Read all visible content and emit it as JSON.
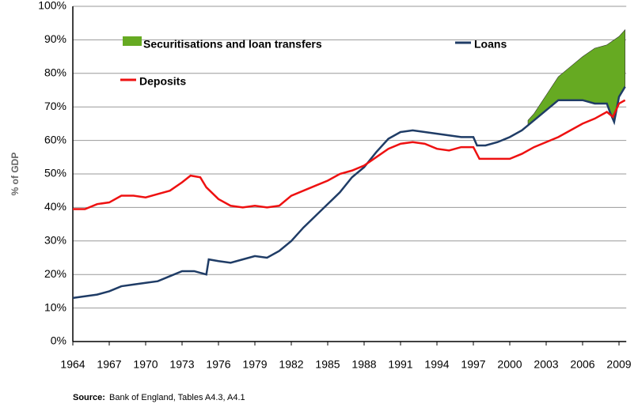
{
  "chart_data": {
    "type": "line",
    "ylabel": "% of GDP",
    "source_label": "Source:",
    "source": "Bank of England, Tables A4.3, A4.1",
    "xlim": [
      1964,
      2009.6
    ],
    "xticks": [
      1964,
      1967,
      1970,
      1973,
      1976,
      1979,
      1982,
      1985,
      1988,
      1991,
      1994,
      1997,
      2000,
      2003,
      2006,
      2009
    ],
    "ylim": [
      0,
      100
    ],
    "yticks": [
      {
        "value": 0,
        "label": "0%"
      },
      {
        "value": 10,
        "label": "10%"
      },
      {
        "value": 20,
        "label": "20%"
      },
      {
        "value": 30,
        "label": "30%"
      },
      {
        "value": 40,
        "label": "40%"
      },
      {
        "value": 50,
        "label": "50%"
      },
      {
        "value": 60,
        "label": "60%"
      },
      {
        "value": 70,
        "label": "70%"
      },
      {
        "value": 80,
        "label": "80%"
      },
      {
        "value": 90,
        "label": "90%"
      },
      {
        "value": 100,
        "label": "100%"
      }
    ],
    "grid": true,
    "series": [
      {
        "name": "Securitisations and loan transfers",
        "color": "#66aa22",
        "kind": "area",
        "x": [
          2001.5,
          2002,
          2003,
          2004,
          2005,
          2006,
          2007,
          2008,
          2009,
          2009.5
        ],
        "values": [
          66,
          68,
          73.5,
          79,
          82,
          85,
          87.5,
          88.5,
          91,
          93
        ]
      },
      {
        "name": "Loans",
        "color": "#1f3c66",
        "kind": "line",
        "x": [
          1964,
          1965,
          1966,
          1967,
          1968,
          1969,
          1970,
          1971,
          1972,
          1973,
          1974,
          1975,
          1975.2,
          1976,
          1977,
          1978,
          1979,
          1980,
          1981,
          1982,
          1983,
          1984,
          1985,
          1986,
          1987,
          1988,
          1989,
          1990,
          1991,
          1992,
          1993,
          1994,
          1995,
          1996,
          1997,
          1997.3,
          1998,
          1999,
          2000,
          2001,
          2002,
          2003,
          2004,
          2005,
          2006,
          2007,
          2008,
          2008.3,
          2008.6,
          2009,
          2009.5
        ],
        "values": [
          13,
          13.5,
          14,
          15,
          16.5,
          17,
          17.5,
          18,
          19.5,
          21,
          21,
          20,
          24.5,
          24,
          23.5,
          24.5,
          25.5,
          25,
          27,
          30,
          34,
          37.5,
          41,
          44.5,
          49,
          52,
          56.5,
          60.5,
          62.5,
          63,
          62.5,
          62,
          61.5,
          61,
          61,
          58.5,
          58.5,
          59.5,
          61,
          63,
          66,
          69,
          72,
          72,
          72,
          71,
          71,
          68,
          65.5,
          73,
          76
        ]
      },
      {
        "name": "Deposits",
        "color": "#ee1111",
        "kind": "line",
        "x": [
          1964,
          1965,
          1966,
          1967,
          1968,
          1969,
          1970,
          1971,
          1972,
          1973,
          1973.7,
          1974.5,
          1975,
          1976,
          1977,
          1978,
          1979,
          1980,
          1981,
          1982,
          1983,
          1984,
          1985,
          1986,
          1987,
          1988,
          1989,
          1990,
          1991,
          1992,
          1993,
          1994,
          1995,
          1996,
          1997,
          1997.5,
          1998,
          1999,
          2000,
          2001,
          2002,
          2003,
          2004,
          2005,
          2006,
          2007,
          2008,
          2008.5,
          2009,
          2009.5
        ],
        "values": [
          39.5,
          39.5,
          41,
          41.5,
          43.5,
          43.5,
          43,
          44,
          45,
          47.5,
          49.5,
          49,
          46,
          42.5,
          40.5,
          40,
          40.5,
          40,
          40.5,
          43.5,
          45,
          46.5,
          48,
          50,
          51,
          52.5,
          55,
          57.5,
          59,
          59.5,
          59,
          57.5,
          57,
          58,
          58,
          54.5,
          54.5,
          54.5,
          54.5,
          56,
          58,
          59.5,
          61,
          63,
          65,
          66.5,
          68.5,
          67,
          71,
          72
        ]
      }
    ]
  }
}
